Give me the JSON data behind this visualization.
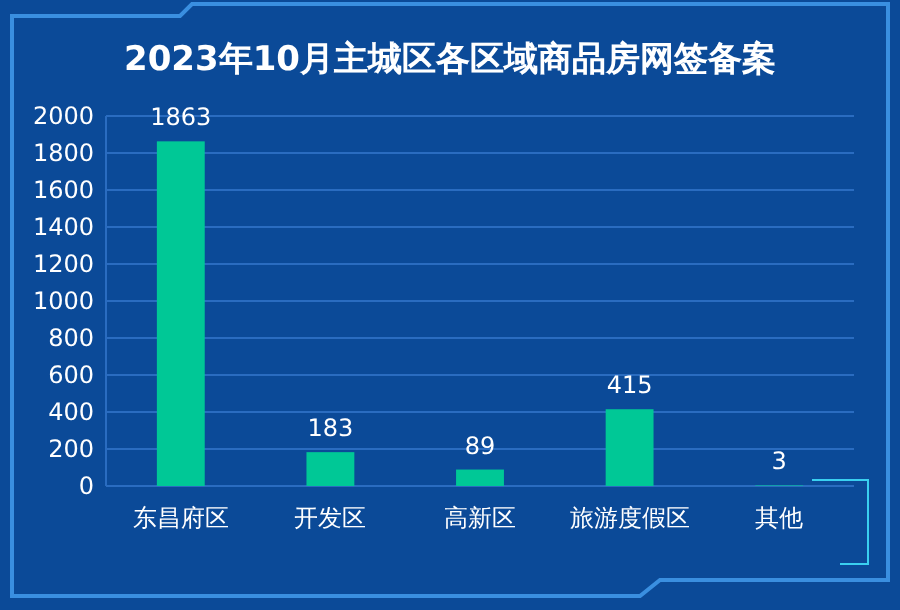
{
  "chart_data": {
    "type": "bar",
    "title": "2023年10月主城区各区域商品房网签备案",
    "categories": [
      "东昌府区",
      "开发区",
      "高新区",
      "旅游度假区",
      "其他"
    ],
    "values": [
      1863,
      183,
      89,
      415,
      3
    ],
    "color": "#00c896",
    "ylim": [
      0,
      2000
    ],
    "yticks": [
      0,
      200,
      400,
      600,
      800,
      1000,
      1200,
      1400,
      1600,
      1800,
      2000
    ],
    "grid": "y",
    "data_labels": true
  }
}
